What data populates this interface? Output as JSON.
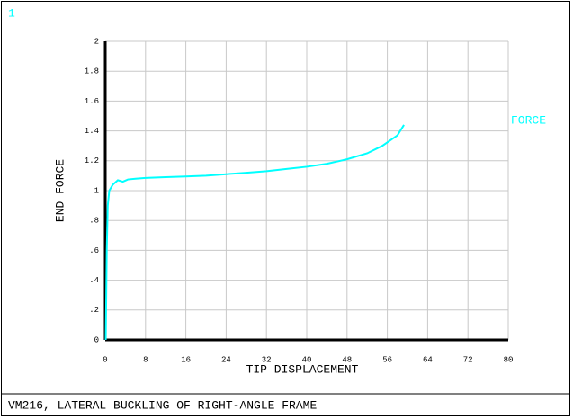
{
  "plot_number": "1",
  "chart_data": {
    "type": "line",
    "footer": "VM216, LATERAL BUCKLING OF RIGHT-ANGLE FRAME",
    "x_label": "TIP DISPLACEMENT",
    "y_label": "END FORCE",
    "x": [
      0.1,
      0.2,
      0.3,
      0.5,
      0.8,
      1.5,
      2.5,
      3.5,
      4.5,
      6,
      8,
      12,
      16,
      20,
      24,
      28,
      32,
      36,
      40,
      44,
      48,
      52,
      55,
      58,
      59.3
    ],
    "series": [
      {
        "name": "FORCE",
        "color": "#00ffff",
        "values": [
          0,
          0.3,
          0.6,
          0.9,
          1.0,
          1.04,
          1.07,
          1.06,
          1.075,
          1.08,
          1.085,
          1.09,
          1.095,
          1.1,
          1.11,
          1.12,
          1.13,
          1.145,
          1.16,
          1.18,
          1.21,
          1.25,
          1.3,
          1.37,
          1.44
        ]
      }
    ],
    "xlim": [
      0,
      80
    ],
    "xticks": [
      0,
      8,
      16,
      24,
      32,
      40,
      48,
      56,
      64,
      72,
      80
    ],
    "ylim": [
      0,
      2
    ],
    "yticks": [
      0,
      {
        "value": 0.2,
        "label": ".2"
      },
      {
        "value": 0.4,
        "label": ".4"
      },
      {
        "value": 0.6,
        "label": ".6"
      },
      {
        "value": 0.8,
        "label": ".8"
      },
      1,
      1.2,
      1.4,
      1.6,
      1.8,
      2
    ],
    "grid": true,
    "legend": "right"
  }
}
